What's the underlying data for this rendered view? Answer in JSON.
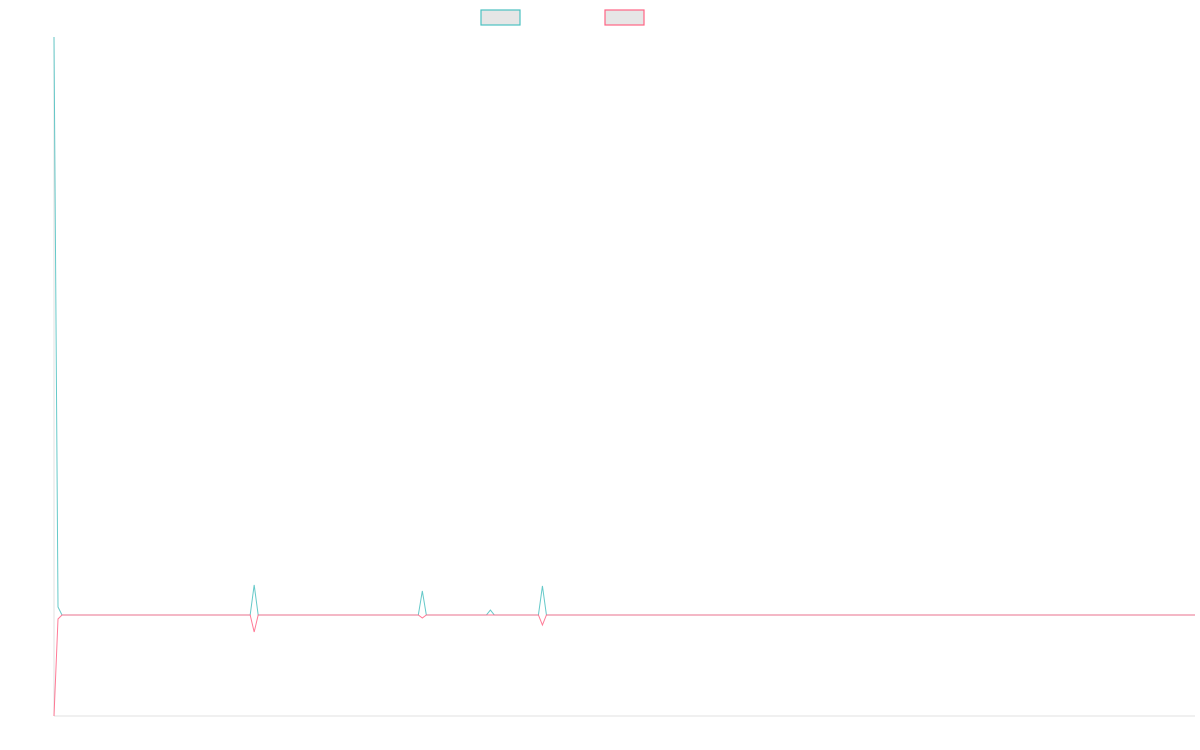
{
  "chart_data": {
    "type": "line",
    "title": "",
    "xlabel": "",
    "ylabel": "",
    "xlim": [
      0,
      285
    ],
    "ylim": [
      -101,
      578
    ],
    "grid": false,
    "legend_placement": "top-center",
    "series": [
      {
        "color": "#4bc0c0",
        "points": [
          [
            0,
            578
          ],
          [
            1,
            8
          ],
          [
            2,
            0
          ],
          [
            49,
            0
          ],
          [
            50,
            30
          ],
          [
            51,
            0
          ],
          [
            91,
            0
          ],
          [
            92,
            24
          ],
          [
            93,
            0
          ],
          [
            108,
            0
          ],
          [
            109,
            5
          ],
          [
            110,
            0
          ],
          [
            121,
            0
          ],
          [
            122,
            29
          ],
          [
            123,
            0
          ],
          [
            285,
            0
          ]
        ]
      },
      {
        "color": "#ff6384",
        "points": [
          [
            0,
            -101
          ],
          [
            1,
            -4
          ],
          [
            2,
            0
          ],
          [
            49,
            0
          ],
          [
            50,
            -17
          ],
          [
            51,
            0
          ],
          [
            91,
            0
          ],
          [
            92,
            -3
          ],
          [
            93,
            0
          ],
          [
            108,
            0
          ],
          [
            109,
            0
          ],
          [
            110,
            0
          ],
          [
            121,
            0
          ],
          [
            122,
            -10
          ],
          [
            123,
            0
          ],
          [
            285,
            0
          ]
        ]
      }
    ]
  }
}
